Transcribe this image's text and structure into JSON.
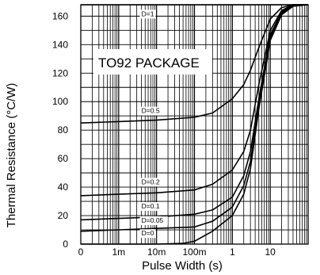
{
  "chart_data": {
    "type": "line",
    "title": "",
    "annotation": "TO92 PACKAGE",
    "xlabel": "Pulse Width (s)",
    "ylabel": "Thermal Resistance (°C/W)",
    "x_scale": "log",
    "xlim": [
      0.0001,
      100
    ],
    "ylim": [
      0,
      168
    ],
    "grid": true,
    "x_ticks": [
      {
        "value": 0.0001,
        "label": "0"
      },
      {
        "value": 0.001,
        "label": "1m"
      },
      {
        "value": 0.01,
        "label": "10m"
      },
      {
        "value": 0.1,
        "label": "100m"
      },
      {
        "value": 1,
        "label": "1"
      },
      {
        "value": 10,
        "label": "10"
      }
    ],
    "y_ticks": [
      {
        "value": 0,
        "label": "0"
      },
      {
        "value": 20,
        "label": "20"
      },
      {
        "value": 40,
        "label": "40"
      },
      {
        "value": 60,
        "label": "60"
      },
      {
        "value": 80,
        "label": "80"
      },
      {
        "value": 100,
        "label": "100"
      },
      {
        "value": 120,
        "label": "120"
      },
      {
        "value": 140,
        "label": "140"
      },
      {
        "value": 160,
        "label": "160"
      }
    ],
    "series": [
      {
        "name": "D=1",
        "x": [
          0.0001,
          100
        ],
        "y": [
          168,
          168
        ]
      },
      {
        "name": "D=0.5",
        "x": [
          0.0001,
          0.001,
          0.01,
          0.1,
          0.3,
          1,
          2,
          3,
          5,
          10,
          20,
          40,
          100
        ],
        "y": [
          85,
          86,
          87,
          89,
          92,
          102,
          112,
          122,
          138,
          158,
          166,
          168,
          168
        ]
      },
      {
        "name": "D=0.2",
        "x": [
          0.0001,
          0.001,
          0.01,
          0.1,
          0.3,
          1,
          2,
          3,
          5,
          10,
          20,
          40,
          100
        ],
        "y": [
          34,
          35,
          36,
          38,
          42,
          52,
          65,
          80,
          112,
          150,
          164,
          168,
          168
        ]
      },
      {
        "name": "D=0.1",
        "x": [
          0.0001,
          0.001,
          0.01,
          0.1,
          0.3,
          1,
          2,
          3,
          5,
          10,
          20,
          40,
          100
        ],
        "y": [
          17,
          18,
          19,
          21,
          24,
          33,
          48,
          65,
          102,
          147,
          163,
          168,
          168
        ]
      },
      {
        "name": "D=0.05",
        "x": [
          0.0001,
          0.001,
          0.01,
          0.1,
          0.3,
          1,
          2,
          3,
          5,
          10,
          20,
          40,
          100
        ],
        "y": [
          9,
          10,
          11,
          12,
          16,
          26,
          41,
          58,
          98,
          145,
          162,
          168,
          168
        ]
      },
      {
        "name": "D=0",
        "x": [
          0.0001,
          0.001,
          0.01,
          0.05,
          0.1,
          0.3,
          1,
          2,
          3,
          5,
          10,
          20,
          40,
          100
        ],
        "y": [
          0,
          0,
          0,
          0.5,
          2,
          9,
          20,
          35,
          53,
          95,
          143,
          161,
          167,
          168
        ]
      }
    ]
  }
}
